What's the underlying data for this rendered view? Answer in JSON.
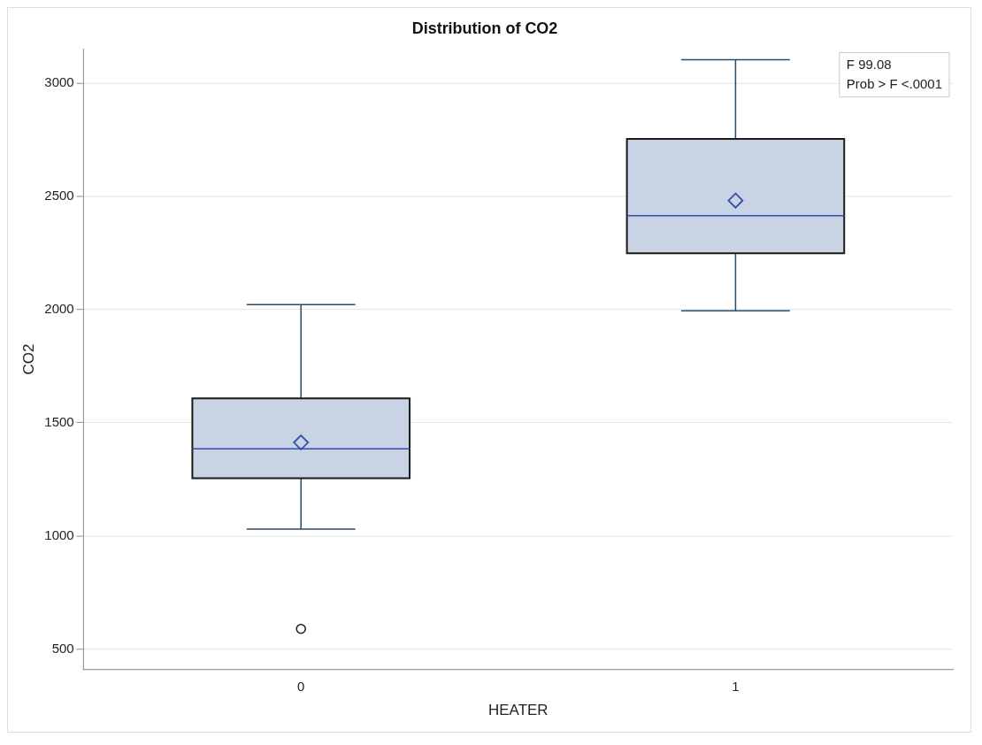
{
  "chart_data": {
    "type": "box",
    "title": "Distribution of CO2",
    "xlabel": "HEATER",
    "ylabel": "CO2",
    "categories": [
      "0",
      "1"
    ],
    "series": [
      {
        "color": "#c8d3e3",
        "boxes": [
          {
            "low": 1030,
            "q1": 1255,
            "median": 1385,
            "q3": 1608,
            "high": 2022,
            "mean": 1413,
            "outliers": [
              590
            ]
          },
          {
            "low": 1994,
            "q1": 2248,
            "median": 2414,
            "q3": 2753,
            "high": 3103,
            "mean": 2481
          }
        ]
      }
    ],
    "ylim": [
      410,
      3150
    ],
    "yticks": [
      500,
      1000,
      1500,
      2000,
      2500,
      3000
    ],
    "grid": "y",
    "legend": false,
    "annotations": [
      "F 99.08",
      "Prob > F <.0001"
    ]
  }
}
